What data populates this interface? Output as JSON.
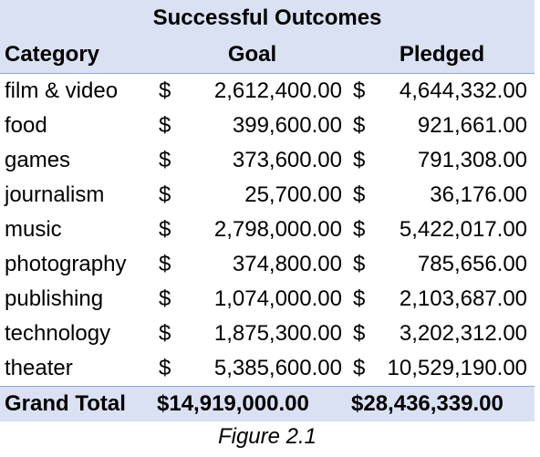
{
  "table": {
    "title": "Successful Outcomes",
    "headers": {
      "category": "Category",
      "goal": "Goal",
      "pledged": "Pledged"
    },
    "currency_symbol": "$",
    "rows": [
      {
        "category": "film & video",
        "goal": "2,612,400.00",
        "pledged": "4,644,332.00"
      },
      {
        "category": "food",
        "goal": "399,600.00",
        "pledged": "921,661.00"
      },
      {
        "category": "games",
        "goal": "373,600.00",
        "pledged": "791,308.00"
      },
      {
        "category": "journalism",
        "goal": "25,700.00",
        "pledged": "36,176.00"
      },
      {
        "category": "music",
        "goal": "2,798,000.00",
        "pledged": "5,422,017.00"
      },
      {
        "category": "photography",
        "goal": "374,800.00",
        "pledged": "785,656.00"
      },
      {
        "category": "publishing",
        "goal": "1,074,000.00",
        "pledged": "2,103,687.00"
      },
      {
        "category": "technology",
        "goal": "1,875,300.00",
        "pledged": "3,202,312.00"
      },
      {
        "category": "theater",
        "goal": "5,385,600.00",
        "pledged": "10,529,190.00"
      }
    ],
    "total": {
      "label": "Grand Total",
      "goal": "14,919,000.00",
      "pledged": "28,436,339.00"
    },
    "header_bg_color": "#d9e1f2",
    "border_color": "#8ea9db"
  },
  "caption": "Figure 2.1"
}
